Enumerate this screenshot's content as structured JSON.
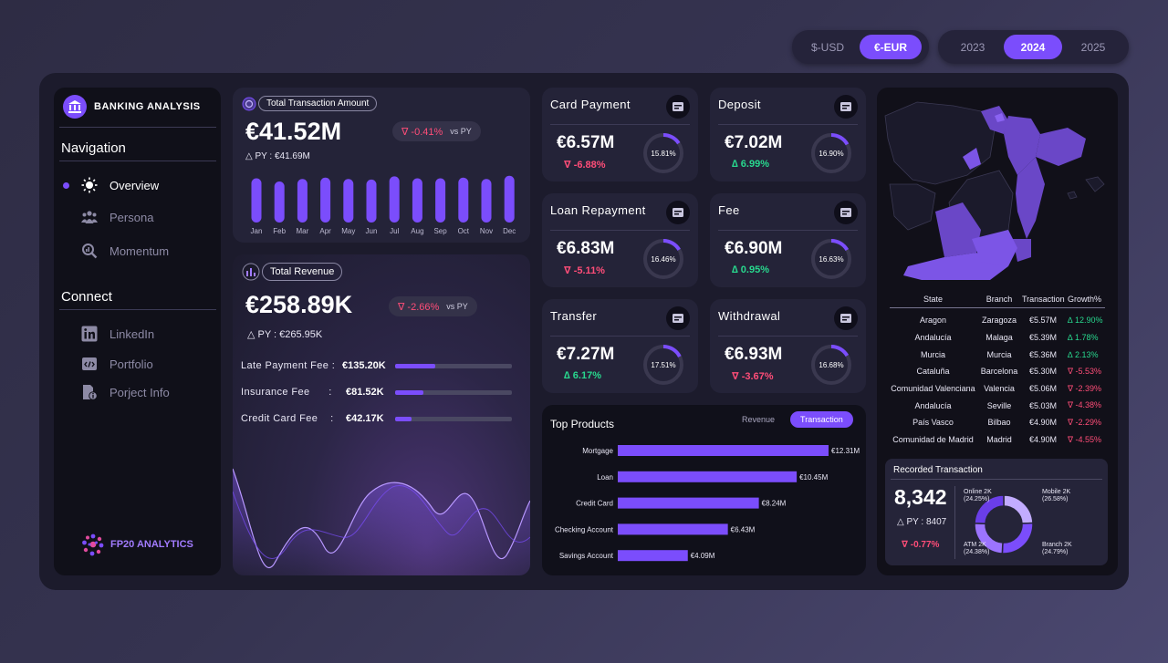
{
  "currency": {
    "options": [
      "$-USD",
      "€-EUR"
    ],
    "selected": "€-EUR"
  },
  "years": {
    "options": [
      "2023",
      "2024",
      "2025"
    ],
    "selected": "2024"
  },
  "sidebar": {
    "title": "BANKING ANALYSIS",
    "nav_header": "Navigation",
    "nav_items": [
      "Overview",
      "Persona",
      "Momentum"
    ],
    "connect_header": "Connect",
    "connect_items": [
      "LinkedIn",
      "Portfolio",
      "Porject Info"
    ],
    "footer_logo": "FP20 ANALYTICS"
  },
  "total_transaction": {
    "title": "Total Transaction Amount",
    "value": "€41.52M",
    "change": "∇ -0.41%",
    "vs": "vs PY",
    "py": "△ PY : €41.69M",
    "months": [
      "Jan",
      "Feb",
      "Mar",
      "Apr",
      "May",
      "Jun",
      "Jul",
      "Aug",
      "Sep",
      "Oct",
      "Nov",
      "Dec"
    ],
    "monthly_values": [
      3.45,
      3.2,
      3.4,
      3.5,
      3.4,
      3.35,
      3.6,
      3.45,
      3.45,
      3.5,
      3.4,
      3.65
    ]
  },
  "total_revenue": {
    "title": "Total Revenue",
    "value": "€258.89K",
    "change": "∇ -2.66%",
    "vs": "vs PY",
    "py": "△ PY : €265.95K",
    "fees": [
      {
        "label": "Late Payment Fee :",
        "value": "€135.20K",
        "fraction": 0.34
      },
      {
        "label": "Insurance Fee      :",
        "value": "€81.52K",
        "fraction": 0.24
      },
      {
        "label": "Credit Card Fee    :",
        "value": "€42.17K",
        "fraction": 0.14
      }
    ]
  },
  "kpis": [
    {
      "title": "Card Payment",
      "value": "€6.57M",
      "change": "∇ -6.88%",
      "dir": "neg",
      "share": "15.81%",
      "share_frac": 0.1581
    },
    {
      "title": "Deposit",
      "value": "€7.02M",
      "change": "∆ 6.99%",
      "dir": "pos",
      "share": "16.90%",
      "share_frac": 0.169
    },
    {
      "title": "Loan Repayment",
      "value": "€6.83M",
      "change": "∇ -5.11%",
      "dir": "neg",
      "share": "16.46%",
      "share_frac": 0.1646
    },
    {
      "title": "Fee",
      "value": "€6.90M",
      "change": "∆ 0.95%",
      "dir": "pos",
      "share": "16.63%",
      "share_frac": 0.1663
    },
    {
      "title": "Transfer",
      "value": "€7.27M",
      "change": "∆ 6.17%",
      "dir": "pos",
      "share": "17.51%",
      "share_frac": 0.1751
    },
    {
      "title": "Withdrawal",
      "value": "€6.93M",
      "change": "∇ -3.67%",
      "dir": "neg",
      "share": "16.68%",
      "share_frac": 0.1668
    }
  ],
  "top_products": {
    "title": "Top Products",
    "tabs": [
      "Revenue",
      "Transaction"
    ],
    "active_tab": "Transaction",
    "chart_data": {
      "type": "bar",
      "orientation": "horizontal",
      "categories": [
        "Mortgage",
        "Loan",
        "Credit Card",
        "Checking Account",
        "Savings Account"
      ],
      "values": [
        12.31,
        10.45,
        8.24,
        6.43,
        4.09
      ],
      "labels": [
        "€12.31M",
        "€10.45M",
        "€8.24M",
        "€6.43M",
        "€4.09M"
      ]
    }
  },
  "state_table": {
    "headers": [
      "State",
      "Branch",
      "Transaction",
      "Growth%"
    ],
    "rows": [
      [
        "Aragon",
        "Zaragoza",
        "€5.57M",
        "∆ 12.90%",
        "pos"
      ],
      [
        "Andalucía",
        "Malaga",
        "€5.39M",
        "∆ 1.78%",
        "pos"
      ],
      [
        "Murcia",
        "Murcia",
        "€5.36M",
        "∆ 2.13%",
        "pos"
      ],
      [
        "Cataluña",
        "Barcelona",
        "€5.30M",
        "∇ -5.53%",
        "neg"
      ],
      [
        "Comunidad Valenciana",
        "Valencia",
        "€5.06M",
        "∇ -2.39%",
        "neg"
      ],
      [
        "Andalucía",
        "Seville",
        "€5.03M",
        "∇ -4.38%",
        "neg"
      ],
      [
        "País Vasco",
        "Bilbao",
        "€4.90M",
        "∇ -2.29%",
        "neg"
      ],
      [
        "Comunidad de Madrid",
        "Madrid",
        "€4.90M",
        "∇ -4.55%",
        "neg"
      ]
    ]
  },
  "recorded": {
    "title": "Recorded Transaction",
    "value": "8,342",
    "py": "△ PY : 8407",
    "change": "∇ -0.77%",
    "chart_data": {
      "type": "pie",
      "categories": [
        "Online",
        "Mobile",
        "Branch",
        "ATM"
      ],
      "values": [
        24.25,
        26.58,
        24.79,
        24.38
      ],
      "labels": [
        [
          "Online 2K",
          "(24.25%)"
        ],
        [
          "Mobile 2K",
          "(26.58%)"
        ],
        [
          "Branch 2K",
          "(24.79%)"
        ],
        [
          "ATM 2K",
          "(24.38%)"
        ]
      ]
    }
  },
  "colors": {
    "accent": "#7b4dfc",
    "positive": "#28d88e",
    "negative": "#ff4d78"
  }
}
